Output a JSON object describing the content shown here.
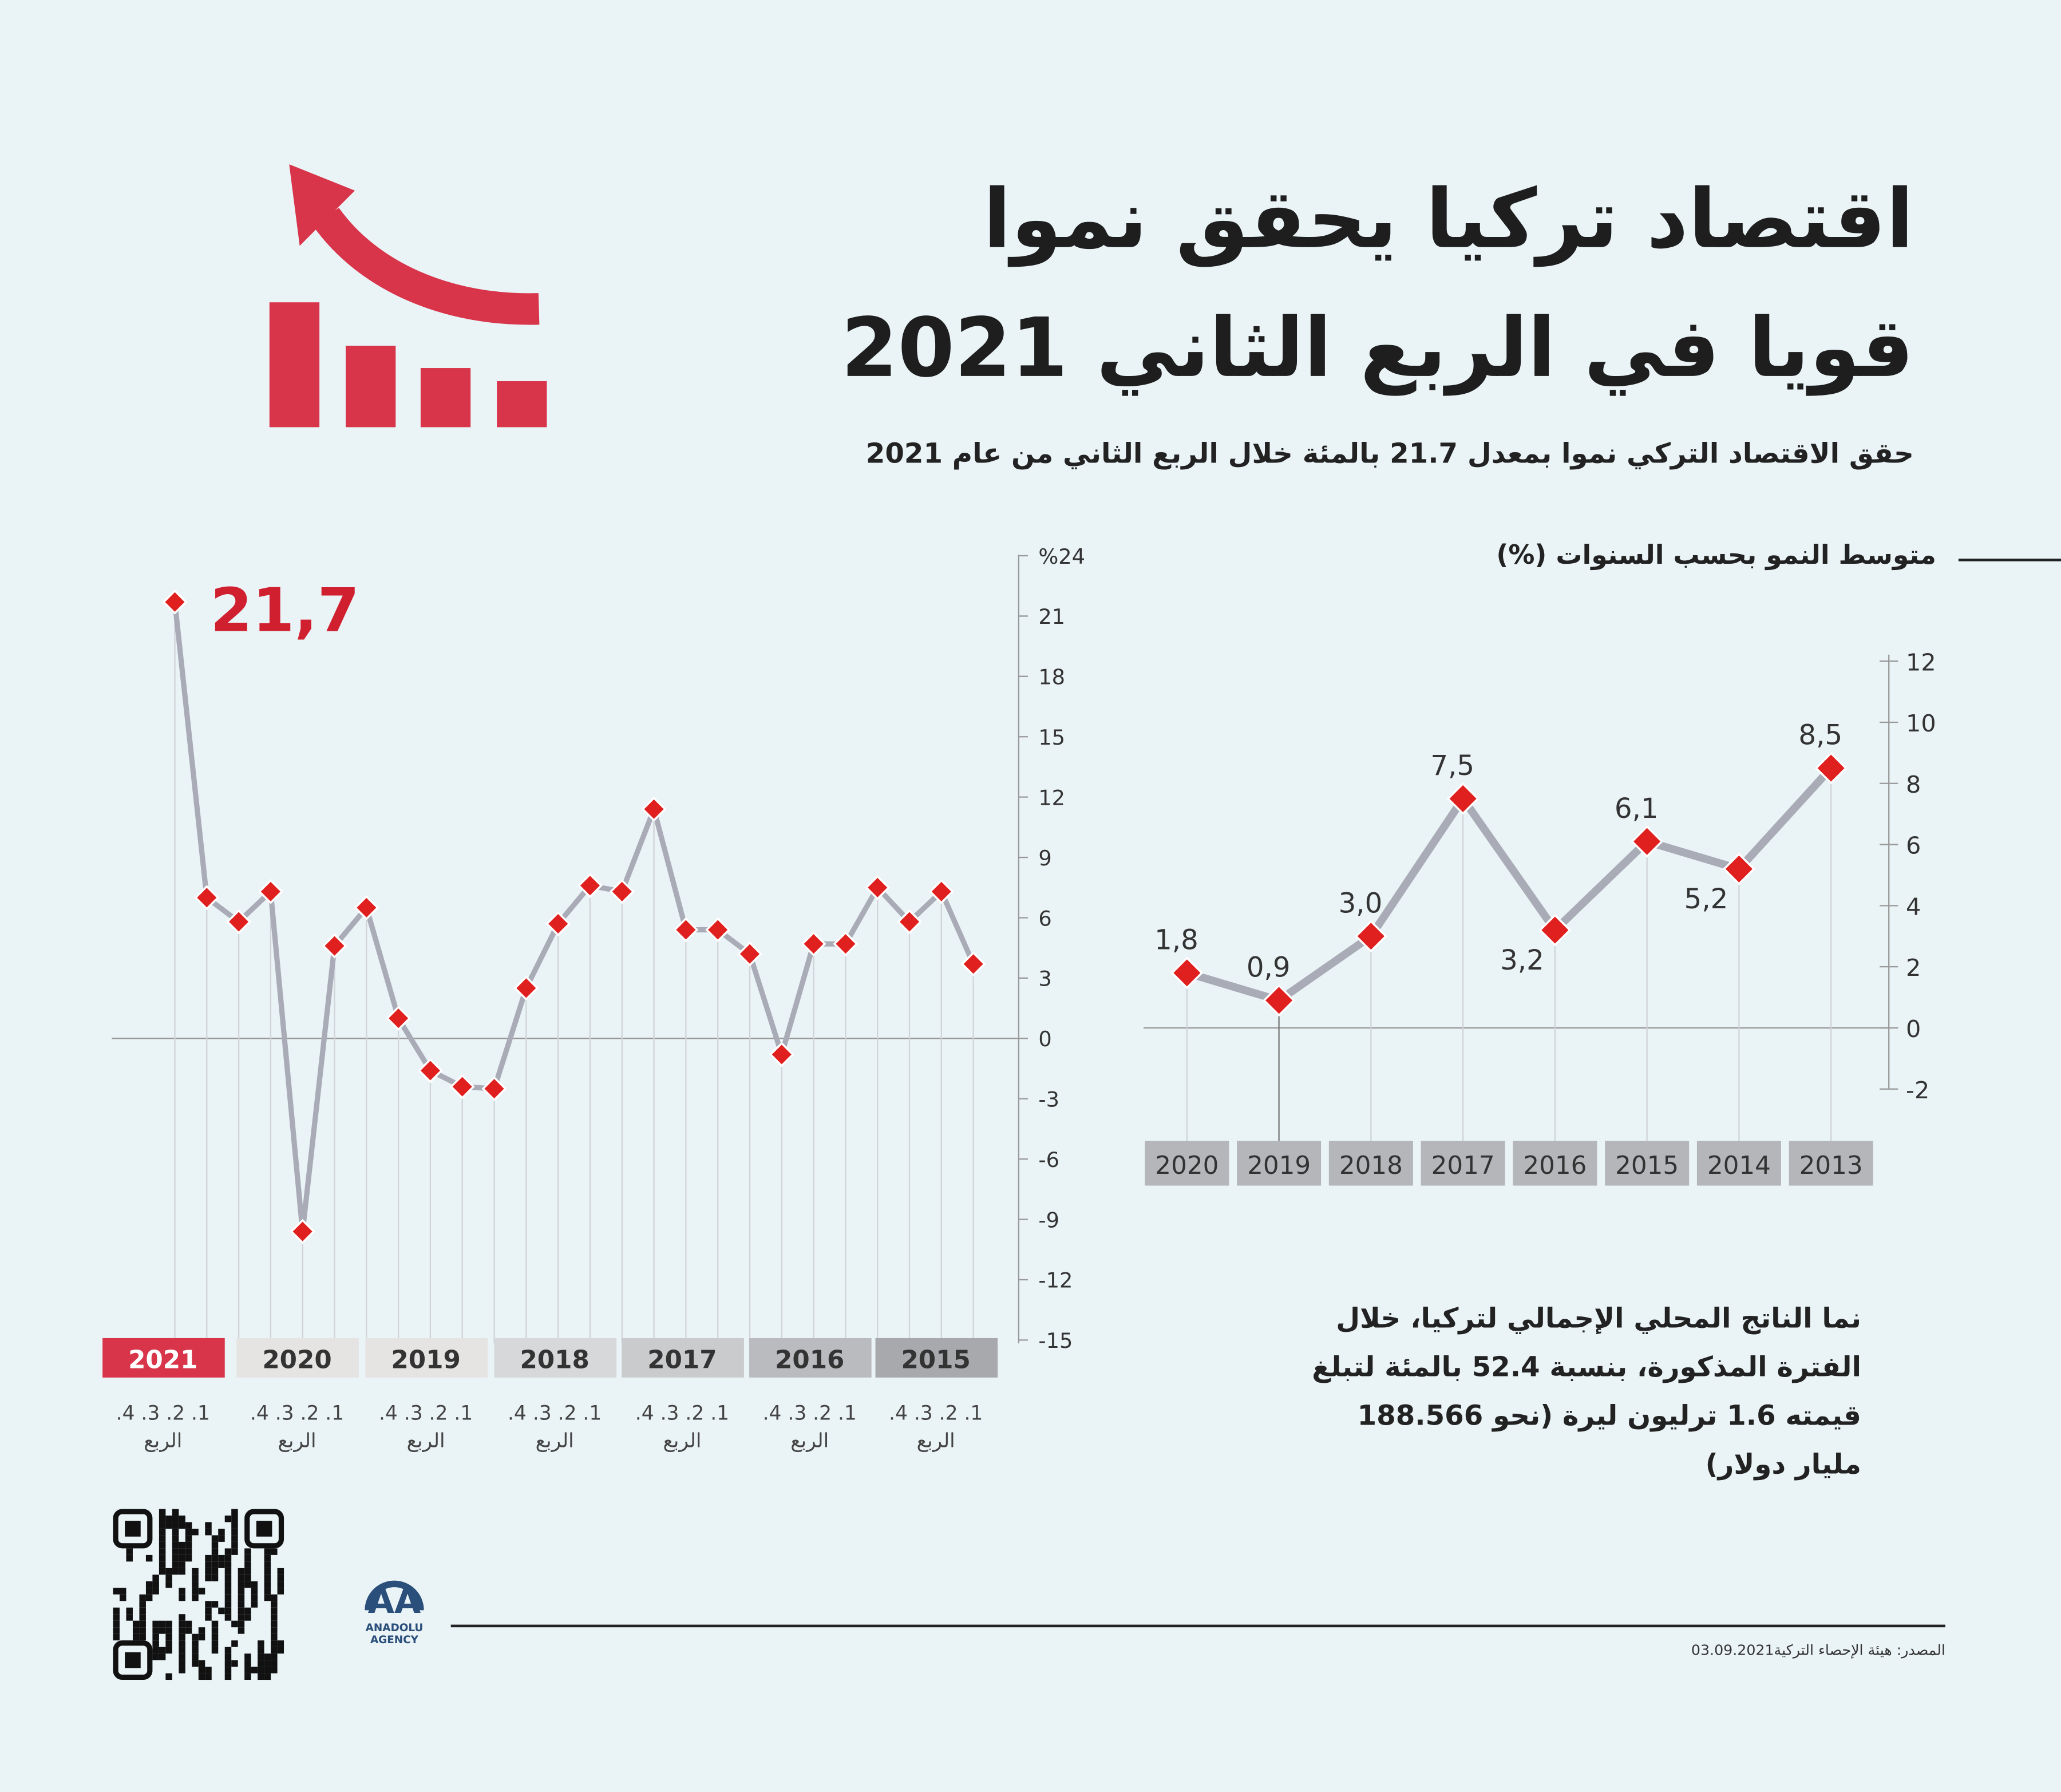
{
  "header": {
    "title_line1": "اقتصاد تركيا يحقق نموا",
    "title_line2": "قويا في الربع الثاني 2021",
    "subtitle": "حقق الاقتصاد التركي نموا بمعدل 21.7 بالمئة خلال الربع الثاني من عام 2021"
  },
  "note": {
    "text": "نما الناتج المحلي الإجمالي لتركيا، خلال الفترة المذكورة، بنسبة 52.4 بالمئة لتبلغ قيمته 1.6 ترليون ليرة (نحو 188.566 مليار دولار)"
  },
  "footer": {
    "source": "المصدر: هيئة الإحصاء التركية",
    "date": "03.09.2021",
    "logo_text": "ANADOLU AGENCY"
  },
  "colors": {
    "accent": "#d8344a",
    "line": "#a9acb6",
    "marker": "#e0201e",
    "bg": "#eaf3f6"
  },
  "chart_data": [
    {
      "type": "line",
      "title": "",
      "ylabel": "%",
      "ylim": [
        -15,
        24
      ],
      "yticks": [
        24,
        21,
        18,
        15,
        12,
        9,
        6,
        3,
        0,
        -3,
        -6,
        -9,
        -12,
        -15
      ],
      "ytick_top_label": "%24",
      "highlight_label": "21,7",
      "quarter_label": "الربع",
      "quarter_ticks": ".4 .3 .2 .1",
      "years": [
        "2021",
        "2020",
        "2019",
        "2018",
        "2017",
        "2016",
        "2015"
      ],
      "x": [
        "2021 Q2",
        "2021 Q1",
        "2020 Q4",
        "2020 Q3",
        "2020 Q2",
        "2020 Q1",
        "2019 Q4",
        "2019 Q3",
        "2019 Q2",
        "2019 Q1",
        "2018 Q4",
        "2018 Q3",
        "2018 Q2",
        "2018 Q1",
        "2017 Q4",
        "2017 Q3",
        "2017 Q2",
        "2017 Q1",
        "2016 Q4",
        "2016 Q3",
        "2016 Q2",
        "2016 Q1",
        "2015 Q4",
        "2015 Q3",
        "2015 Q2",
        "2015 Q1"
      ],
      "values": [
        21.7,
        7.0,
        5.8,
        7.3,
        -9.6,
        4.6,
        6.5,
        1.0,
        -1.6,
        -2.4,
        -2.5,
        2.5,
        5.7,
        7.6,
        7.3,
        11.4,
        5.4,
        5.4,
        4.2,
        -0.8,
        4.7,
        4.7,
        7.5,
        5.8,
        7.3,
        3.7
      ]
    },
    {
      "type": "line",
      "title": "متوسط النمو بحسب السنوات (%)",
      "ylim": [
        -2,
        12
      ],
      "yticks": [
        12,
        10,
        8,
        6,
        4,
        2,
        0,
        -2
      ],
      "x": [
        "2020",
        "2019",
        "2018",
        "2017",
        "2016",
        "2015",
        "2014",
        "2013"
      ],
      "values": [
        1.8,
        0.9,
        3.0,
        7.5,
        3.2,
        6.1,
        5.2,
        8.5
      ],
      "labels": [
        "1,8",
        "0,9",
        "3,0",
        "7,5",
        "3,2",
        "6,1",
        "5,2",
        "8,5"
      ]
    }
  ]
}
